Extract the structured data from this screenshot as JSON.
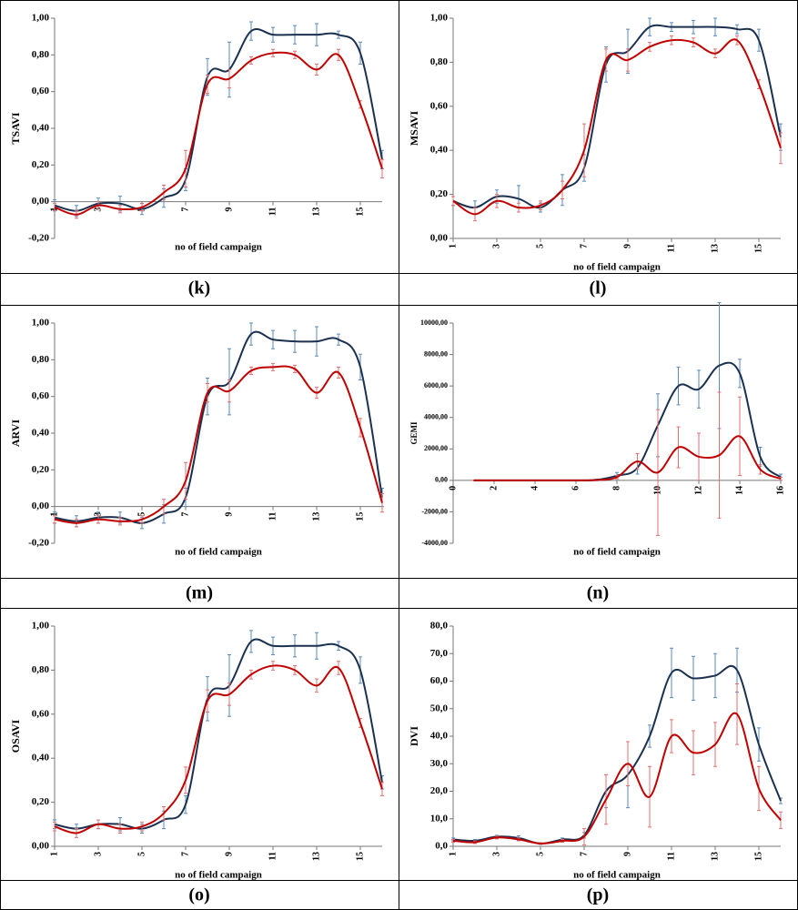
{
  "chart_data": [
    {
      "type": "line",
      "caption": "(k)",
      "ylabel": "TSAVI",
      "xlabel": "no of field campaign",
      "x": [
        1,
        2,
        3,
        4,
        5,
        6,
        7,
        8,
        9,
        10,
        11,
        12,
        13,
        14,
        15,
        16
      ],
      "xlim": [
        1,
        16
      ],
      "xticks": [
        1,
        3,
        5,
        7,
        9,
        11,
        13,
        15
      ],
      "ylim": [
        -0.2,
        1
      ],
      "yticks": [
        {
          "value": -0.2,
          "label": "-0,20"
        },
        {
          "value": 0,
          "label": "0,00"
        },
        {
          "value": 0.2,
          "label": "0,20"
        },
        {
          "value": 0.4,
          "label": "0,40"
        },
        {
          "value": 0.6,
          "label": "0,60"
        },
        {
          "value": 0.8,
          "label": "0,80"
        },
        {
          "value": 1,
          "label": "1,00"
        }
      ],
      "series": [
        {
          "color": "#1b3150",
          "error_color": "#5b8ac0",
          "values": [
            -0.02,
            -0.05,
            -0.01,
            -0.01,
            -0.04,
            0.02,
            0.12,
            0.68,
            0.72,
            0.93,
            0.91,
            0.91,
            0.91,
            0.91,
            0.81,
            0.23
          ],
          "errors": [
            0.03,
            0.03,
            0.03,
            0.04,
            0.03,
            0.05,
            0.06,
            0.1,
            0.15,
            0.05,
            0.04,
            0.05,
            0.06,
            0.02,
            0.06,
            0.05
          ]
        },
        {
          "color": "#c00000",
          "error_color": "#e07070",
          "values": [
            -0.03,
            -0.07,
            -0.02,
            -0.04,
            -0.03,
            0.05,
            0.18,
            0.64,
            0.67,
            0.77,
            0.81,
            0.8,
            0.72,
            0.8,
            0.53,
            0.18
          ],
          "errors": [
            0.02,
            0.02,
            0.02,
            0.02,
            0.02,
            0.04,
            0.1,
            0.05,
            0.05,
            0.02,
            0.02,
            0.02,
            0.03,
            0.03,
            0.02,
            0.05
          ]
        }
      ]
    },
    {
      "type": "line",
      "caption": "(l)",
      "ylabel": "MSAVI",
      "xlabel": "no of field campaign",
      "x": [
        1,
        2,
        3,
        4,
        5,
        6,
        7,
        8,
        9,
        10,
        11,
        12,
        13,
        14,
        15,
        16
      ],
      "xlim": [
        1,
        16
      ],
      "xticks": [
        1,
        3,
        5,
        7,
        9,
        11,
        13,
        15
      ],
      "ylim": [
        0,
        1
      ],
      "yticks": [
        {
          "value": 0,
          "label": "0,00"
        },
        {
          "value": 0.2,
          "label": "0,20"
        },
        {
          "value": 0.4,
          "label": "0,40"
        },
        {
          "value": 0.6,
          "label": "0,60"
        },
        {
          "value": 0.8,
          "label": "0,80"
        },
        {
          "value": 1,
          "label": "1,00"
        }
      ],
      "series": [
        {
          "color": "#1b3150",
          "error_color": "#5b8ac0",
          "values": [
            0.17,
            0.14,
            0.19,
            0.18,
            0.14,
            0.22,
            0.32,
            0.79,
            0.85,
            0.96,
            0.96,
            0.96,
            0.96,
            0.95,
            0.9,
            0.46
          ],
          "errors": [
            0.02,
            0.03,
            0.03,
            0.06,
            0.02,
            0.07,
            0.06,
            0.08,
            0.1,
            0.04,
            0.02,
            0.03,
            0.04,
            0.02,
            0.05,
            0.06
          ]
        },
        {
          "color": "#c00000",
          "error_color": "#e07070",
          "values": [
            0.17,
            0.11,
            0.17,
            0.14,
            0.15,
            0.22,
            0.4,
            0.81,
            0.81,
            0.87,
            0.9,
            0.89,
            0.84,
            0.9,
            0.7,
            0.41
          ],
          "errors": [
            0.02,
            0.03,
            0.03,
            0.02,
            0.02,
            0.04,
            0.12,
            0.05,
            0.05,
            0.02,
            0.02,
            0.02,
            0.02,
            0.02,
            0.02,
            0.07
          ]
        }
      ]
    },
    {
      "type": "line",
      "caption": "(m)",
      "ylabel": "ARVI",
      "xlabel": "no of field campaign",
      "x": [
        1,
        2,
        3,
        4,
        5,
        6,
        7,
        8,
        9,
        10,
        11,
        12,
        13,
        14,
        15,
        16
      ],
      "xlim": [
        1,
        16
      ],
      "xticks": [
        1,
        3,
        5,
        7,
        9,
        11,
        13,
        15
      ],
      "ylim": [
        -0.2,
        1
      ],
      "yticks": [
        {
          "value": -0.2,
          "label": "-0,20"
        },
        {
          "value": 0,
          "label": "0,00"
        },
        {
          "value": 0.2,
          "label": "0,20"
        },
        {
          "value": 0.4,
          "label": "0,40"
        },
        {
          "value": 0.6,
          "label": "0,60"
        },
        {
          "value": 0.8,
          "label": "0,80"
        },
        {
          "value": 1,
          "label": "1,00"
        }
      ],
      "series": [
        {
          "color": "#1b3150",
          "error_color": "#5b8ac0",
          "values": [
            -0.06,
            -0.08,
            -0.06,
            -0.06,
            -0.09,
            -0.04,
            0.05,
            0.6,
            0.68,
            0.94,
            0.91,
            0.9,
            0.9,
            0.91,
            0.76,
            0.05
          ],
          "errors": [
            0.03,
            0.03,
            0.03,
            0.03,
            0.03,
            0.05,
            0.05,
            0.1,
            0.18,
            0.06,
            0.05,
            0.06,
            0.08,
            0.03,
            0.07,
            0.05
          ]
        },
        {
          "color": "#c00000",
          "error_color": "#e07070",
          "values": [
            -0.07,
            -0.09,
            -0.07,
            -0.08,
            -0.07,
            0,
            0.14,
            0.62,
            0.63,
            0.74,
            0.76,
            0.75,
            0.62,
            0.73,
            0.43,
            0.02
          ],
          "errors": [
            0.02,
            0.02,
            0.02,
            0.02,
            0.02,
            0.04,
            0.1,
            0.05,
            0.06,
            0.02,
            0.02,
            0.02,
            0.03,
            0.03,
            0.05,
            0.05
          ]
        }
      ]
    },
    {
      "type": "line",
      "caption": "(n)",
      "ylabel": "GEMI",
      "xlabel": "no of field campaign",
      "x": [
        1,
        2,
        3,
        4,
        5,
        6,
        7,
        8,
        9,
        10,
        11,
        12,
        13,
        14,
        15,
        16
      ],
      "xlim": [
        0,
        16
      ],
      "xticks": [
        0,
        2,
        4,
        6,
        8,
        10,
        12,
        14,
        16
      ],
      "ylim": [
        -4000,
        10000
      ],
      "yticks": [
        {
          "value": -4000,
          "label": "-4000,00"
        },
        {
          "value": -2000,
          "label": "-2000,00"
        },
        {
          "value": 0,
          "label": "0,00"
        },
        {
          "value": 2000,
          "label": "2000,00"
        },
        {
          "value": 4000,
          "label": "4000,00"
        },
        {
          "value": 6000,
          "label": "6000,00"
        },
        {
          "value": 8000,
          "label": "8000,00"
        },
        {
          "value": 10000,
          "label": "10000,00"
        }
      ],
      "series": [
        {
          "color": "#1b3150",
          "error_color": "#5b8ac0",
          "values": [
            0,
            0,
            0,
            0,
            0,
            0,
            30,
            300,
            800,
            3500,
            6000,
            5800,
            7300,
            6800,
            1500,
            200
          ],
          "errors": [
            0,
            0,
            0,
            0,
            0,
            0,
            50,
            200,
            400,
            2000,
            1200,
            1200,
            4000,
            900,
            600,
            200
          ]
        },
        {
          "color": "#c00000",
          "error_color": "#e07070",
          "values": [
            0,
            0,
            0,
            0,
            0,
            0,
            20,
            200,
            1200,
            500,
            2100,
            1500,
            1600,
            2800,
            700,
            100
          ],
          "errors": [
            0,
            0,
            0,
            0,
            0,
            0,
            20,
            100,
            500,
            4000,
            1300,
            1500,
            4000,
            2500,
            300,
            100
          ]
        }
      ]
    },
    {
      "type": "line",
      "caption": "(o)",
      "ylabel": "OSAVI",
      "xlabel": "no of field campaign",
      "x": [
        1,
        2,
        3,
        4,
        5,
        6,
        7,
        8,
        9,
        10,
        11,
        12,
        13,
        14,
        15,
        16
      ],
      "xlim": [
        1,
        16
      ],
      "xticks": [
        1,
        3,
        5,
        7,
        9,
        11,
        13,
        15
      ],
      "ylim": [
        0,
        1
      ],
      "yticks": [
        {
          "value": 0,
          "label": "0,00"
        },
        {
          "value": 0.2,
          "label": "0,20"
        },
        {
          "value": 0.4,
          "label": "0,40"
        },
        {
          "value": 0.6,
          "label": "0,60"
        },
        {
          "value": 0.8,
          "label": "0,80"
        },
        {
          "value": 1,
          "label": "1,00"
        }
      ],
      "series": [
        {
          "color": "#1b3150",
          "error_color": "#5b8ac0",
          "values": [
            0.1,
            0.08,
            0.1,
            0.1,
            0.08,
            0.12,
            0.19,
            0.67,
            0.73,
            0.93,
            0.91,
            0.91,
            0.91,
            0.91,
            0.8,
            0.29
          ],
          "errors": [
            0.02,
            0.02,
            0.02,
            0.03,
            0.02,
            0.04,
            0.04,
            0.1,
            0.14,
            0.05,
            0.04,
            0.05,
            0.06,
            0.02,
            0.06,
            0.03
          ]
        },
        {
          "color": "#c00000",
          "error_color": "#e07070",
          "values": [
            0.09,
            0.06,
            0.1,
            0.08,
            0.09,
            0.15,
            0.3,
            0.66,
            0.69,
            0.78,
            0.82,
            0.8,
            0.73,
            0.81,
            0.56,
            0.26
          ],
          "errors": [
            0.02,
            0.02,
            0.02,
            0.02,
            0.02,
            0.03,
            0.06,
            0.05,
            0.05,
            0.02,
            0.02,
            0.02,
            0.03,
            0.03,
            0.02,
            0.03
          ]
        }
      ]
    },
    {
      "type": "line",
      "caption": "(p)",
      "ylabel": "DVI",
      "xlabel": "no of field campaign",
      "x": [
        1,
        2,
        3,
        4,
        5,
        6,
        7,
        8,
        9,
        10,
        11,
        12,
        13,
        14,
        15,
        16
      ],
      "xlim": [
        1,
        16
      ],
      "xticks": [
        1,
        3,
        5,
        7,
        9,
        11,
        13,
        15
      ],
      "ylim": [
        0,
        80
      ],
      "yticks": [
        {
          "value": 0,
          "label": "0,0"
        },
        {
          "value": 10,
          "label": "10,0"
        },
        {
          "value": 20,
          "label": "20,0"
        },
        {
          "value": 30,
          "label": "30,0"
        },
        {
          "value": 40,
          "label": "40,0"
        },
        {
          "value": 50,
          "label": "50,0"
        },
        {
          "value": 60,
          "label": "60,0"
        },
        {
          "value": 70,
          "label": "70,0"
        },
        {
          "value": 80,
          "label": "80,0"
        }
      ],
      "series": [
        {
          "color": "#1b3150",
          "error_color": "#5b8ac0",
          "values": [
            2.5,
            2,
            3.5,
            3,
            1,
            2.5,
            4,
            20,
            26,
            40,
            63,
            61,
            62,
            64,
            37,
            16.5
          ],
          "errors": [
            0.5,
            0.5,
            0.5,
            0.8,
            0.3,
            0.5,
            1,
            6,
            12,
            4,
            9,
            8,
            8,
            8,
            6,
            1
          ]
        },
        {
          "color": "#c00000",
          "error_color": "#e07070",
          "values": [
            2,
            1.5,
            3.2,
            2.5,
            1,
            2,
            3.5,
            17,
            30,
            18,
            40,
            34,
            37,
            48,
            21,
            9.5
          ],
          "errors": [
            0.5,
            0.5,
            0.5,
            0.5,
            0.3,
            0.5,
            3,
            9,
            8,
            11,
            6,
            8,
            8,
            11,
            8,
            3
          ]
        }
      ]
    }
  ]
}
